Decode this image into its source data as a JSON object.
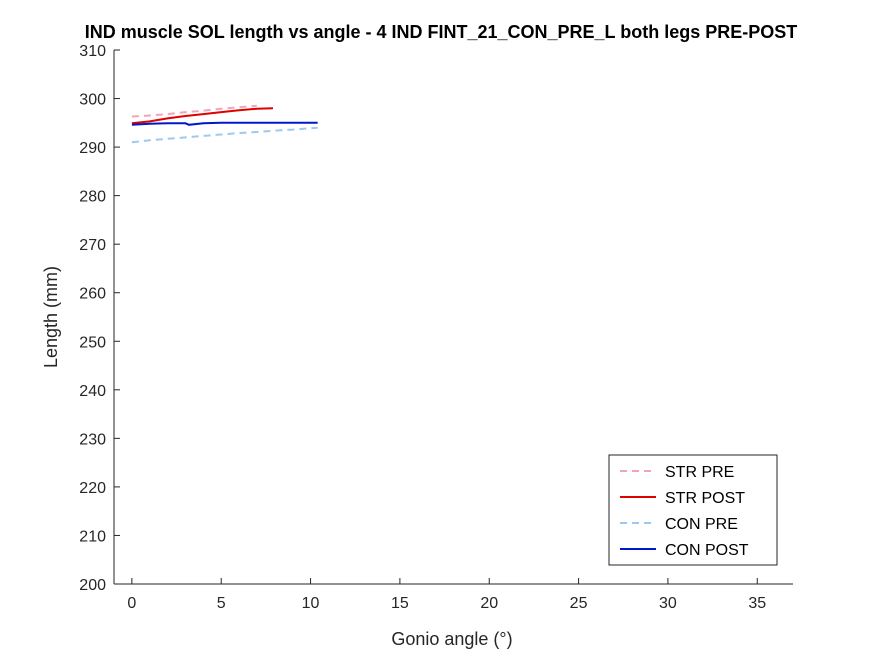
{
  "chart_data": {
    "type": "line",
    "title": "IND muscle SOL length vs angle - 4 IND FINT_21_CON_PRE_L both legs PRE-POST",
    "xlabel": "Gonio angle (°)",
    "ylabel": "Length (mm)",
    "xlim": [
      -1,
      37
    ],
    "ylim": [
      200,
      310
    ],
    "xticks": [
      0,
      5,
      10,
      15,
      20,
      25,
      30,
      35
    ],
    "yticks": [
      200,
      210,
      220,
      230,
      240,
      250,
      260,
      270,
      280,
      290,
      300,
      310
    ],
    "grid": false,
    "legend_position": "bottom-right",
    "series": [
      {
        "name": "STR PRE",
        "color": "#f4a3bd",
        "style": "dashed",
        "x": [
          0,
          1,
          2,
          3,
          4,
          5,
          6,
          7
        ],
        "y": [
          296.3,
          296.5,
          296.8,
          297.2,
          297.5,
          297.9,
          298.2,
          298.5
        ]
      },
      {
        "name": "STR POST",
        "color": "#e00000",
        "style": "solid",
        "x": [
          0,
          1,
          2,
          3,
          4,
          5,
          6,
          7,
          7.9
        ],
        "y": [
          294.9,
          295.3,
          295.9,
          296.4,
          296.8,
          297.2,
          297.6,
          297.9,
          298.0
        ]
      },
      {
        "name": "CON PRE",
        "color": "#9dc8f0",
        "style": "dashed",
        "x": [
          0,
          1,
          2,
          3,
          4,
          5,
          6,
          7,
          8,
          9,
          10,
          10.4
        ],
        "y": [
          291.0,
          291.4,
          291.7,
          292.0,
          292.3,
          292.6,
          292.9,
          293.1,
          293.4,
          293.6,
          293.9,
          294.0
        ]
      },
      {
        "name": "CON POST",
        "color": "#0018c8",
        "style": "solid",
        "x": [
          0,
          1,
          2,
          3,
          3.2,
          4,
          5,
          6,
          7,
          8,
          9,
          10,
          10.4
        ],
        "y": [
          294.6,
          294.8,
          294.9,
          294.9,
          294.6,
          294.9,
          295.0,
          295.0,
          295.0,
          295.0,
          295.0,
          295.0,
          295.0
        ]
      }
    ]
  }
}
